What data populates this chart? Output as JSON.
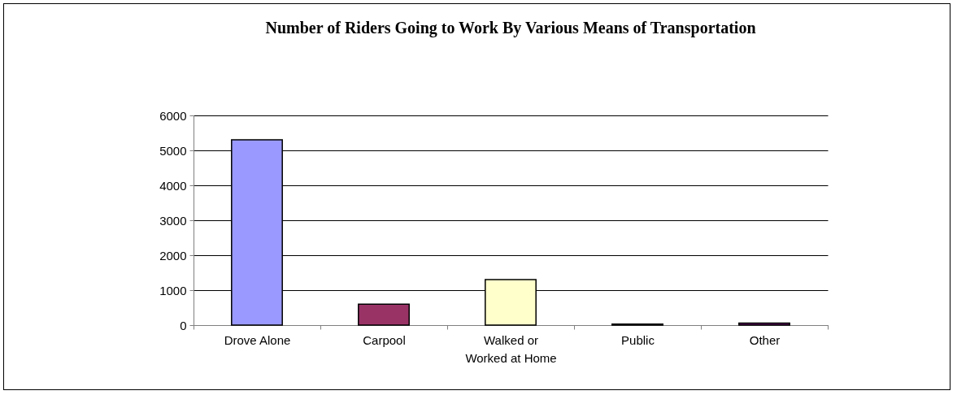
{
  "chart_data": {
    "type": "bar",
    "title": "Number of Riders Going to Work By Various Means of Transportation",
    "categories": [
      "Drove Alone",
      "Carpool",
      "Walked or Worked at Home",
      "Public",
      "Other"
    ],
    "values": [
      5300,
      600,
      1300,
      30,
      60
    ],
    "colors": [
      "#9999ff",
      "#993366",
      "#ffffcc",
      "#99cccc",
      "#660066"
    ],
    "ylim": [
      0,
      6000
    ],
    "yticks": [
      0,
      1000,
      2000,
      3000,
      4000,
      5000,
      6000
    ],
    "grid": "y"
  }
}
